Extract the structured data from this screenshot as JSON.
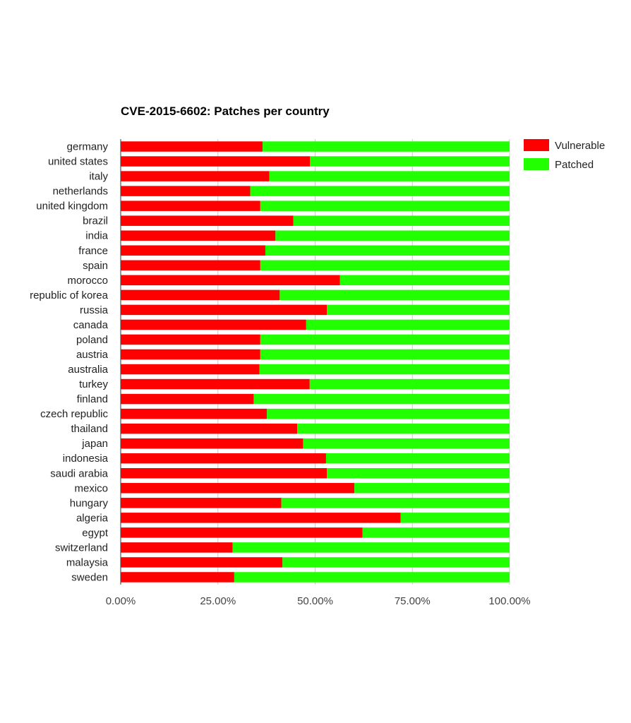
{
  "chart_data": {
    "type": "bar",
    "orientation": "horizontal",
    "stacked": "percent",
    "title": "CVE-2015-6602: Patches per country",
    "xlabel": "",
    "ylabel": "",
    "xlim": [
      0,
      100
    ],
    "x_ticks": [
      "0.00%",
      "25.00%",
      "50.00%",
      "75.00%",
      "100.00%"
    ],
    "grid": true,
    "legend_position": "top-right",
    "categories": [
      "germany",
      "united states",
      "italy",
      "netherlands",
      "united kingdom",
      "brazil",
      "india",
      "france",
      "spain",
      "morocco",
      "republic of korea",
      "russia",
      "canada",
      "poland",
      "austria",
      "australia",
      "turkey",
      "finland",
      "czech republic",
      "thailand",
      "japan",
      "indonesia",
      "saudi arabia",
      "mexico",
      "hungary",
      "algeria",
      "egypt",
      "switzerland",
      "malaysia",
      "sweden"
    ],
    "series": [
      {
        "name": "Vulnerable",
        "color": "#ff0000",
        "values": [
          36.5,
          48.7,
          38.2,
          33.3,
          35.9,
          44.4,
          39.8,
          37.2,
          35.9,
          56.4,
          40.9,
          53.0,
          47.7,
          35.9,
          35.9,
          35.7,
          48.6,
          34.2,
          37.6,
          45.4,
          46.9,
          52.8,
          53.0,
          60.1,
          41.3,
          72.0,
          62.2,
          28.8,
          41.6,
          29.2
        ]
      },
      {
        "name": "Patched",
        "color": "#22ff00",
        "values": [
          63.5,
          51.3,
          61.8,
          66.7,
          64.1,
          55.6,
          60.2,
          62.8,
          64.1,
          43.6,
          59.1,
          47.0,
          52.3,
          64.1,
          64.1,
          64.3,
          51.4,
          65.8,
          62.4,
          54.6,
          53.1,
          47.2,
          47.0,
          39.9,
          58.7,
          28.0,
          37.8,
          71.2,
          58.4,
          70.8
        ]
      }
    ]
  }
}
